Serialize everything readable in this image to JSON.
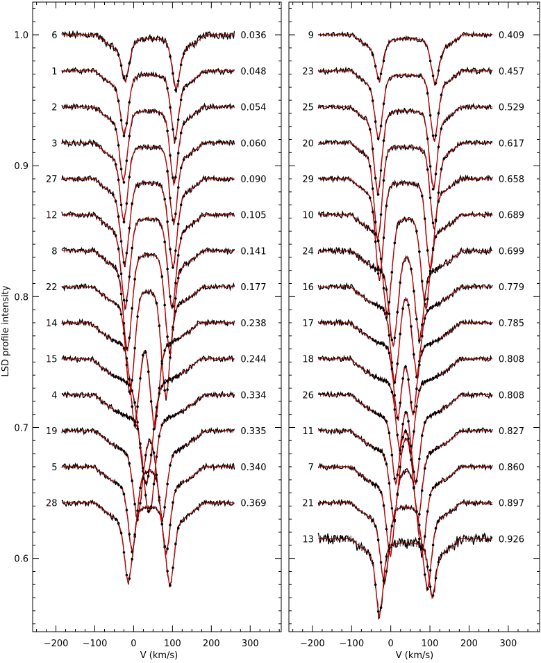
{
  "chart_data": {
    "type": "line",
    "ylabel": "LSD profile intensity",
    "xlabel": "V (km/s)",
    "ylim": [
      0.544,
      1.025
    ],
    "xlim": [
      -260,
      380
    ],
    "x_ticks": [
      -200,
      -100,
      0,
      100,
      200,
      300
    ],
    "x_tick_labels": [
      "−200",
      "−100",
      "0",
      "100",
      "200",
      "300"
    ],
    "y_ticks": [
      0.6,
      0.7,
      0.8,
      0.9,
      1.0
    ],
    "y_tick_labels": [
      "0.6",
      "0.7",
      "0.8",
      "0.9",
      "1.0"
    ],
    "velocity_range": [
      -185,
      260
    ],
    "offset_step": 0.0275,
    "grid": false,
    "colors": {
      "observed": "#000000",
      "model": "#d40000",
      "axis": "#000000"
    },
    "panels": [
      {
        "spectra": [
          {
            "id": "6",
            "phase": "0.036",
            "continuum": 1.0,
            "dips": [
              {
                "v": -20,
                "d": 0.022,
                "w": 10
              },
              {
                "v": 108,
                "d": 0.028,
                "w": 10
              }
            ],
            "wing": 0.02,
            "wing_half": 140,
            "core_lift": 0.0,
            "noise": 0.0025
          },
          {
            "id": "1",
            "phase": "0.048",
            "continuum": 0.9725,
            "dips": [
              {
                "v": -23,
                "d": 0.035,
                "w": 10
              },
              {
                "v": 105,
                "d": 0.038,
                "w": 10
              }
            ],
            "wing": 0.022,
            "wing_half": 140,
            "core_lift": 0.0,
            "noise": 0.0018
          },
          {
            "id": "2",
            "phase": "0.054",
            "continuum": 0.945,
            "dips": [
              {
                "v": -25,
                "d": 0.042,
                "w": 10
              },
              {
                "v": 103,
                "d": 0.044,
                "w": 10
              }
            ],
            "wing": 0.022,
            "wing_half": 140,
            "core_lift": 0.0,
            "noise": 0.0018
          },
          {
            "id": "3",
            "phase": "0.060",
            "continuum": 0.9175,
            "dips": [
              {
                "v": -24,
                "d": 0.045,
                "w": 10
              },
              {
                "v": 102,
                "d": 0.047,
                "w": 10
              }
            ],
            "wing": 0.022,
            "wing_half": 140,
            "core_lift": 0.0,
            "noise": 0.0018
          },
          {
            "id": "27",
            "phase": "0.090",
            "continuum": 0.89,
            "dips": [
              {
                "v": -22,
                "d": 0.05,
                "w": 11
              },
              {
                "v": 100,
                "d": 0.052,
                "w": 11
              }
            ],
            "wing": 0.022,
            "wing_half": 140,
            "core_lift": 0.0,
            "noise": 0.0018
          },
          {
            "id": "12",
            "phase": "0.105",
            "continuum": 0.8625,
            "dips": [
              {
                "v": -20,
                "d": 0.055,
                "w": 11
              },
              {
                "v": 98,
                "d": 0.056,
                "w": 11
              }
            ],
            "wing": 0.022,
            "wing_half": 140,
            "core_lift": 0.0,
            "noise": 0.0018
          },
          {
            "id": "8",
            "phase": "0.141",
            "continuum": 0.835,
            "dips": [
              {
                "v": -15,
                "d": 0.06,
                "w": 11
              },
              {
                "v": 92,
                "d": 0.062,
                "w": 11
              }
            ],
            "wing": 0.022,
            "wing_half": 140,
            "core_lift": 0.0,
            "noise": 0.002
          },
          {
            "id": "22",
            "phase": "0.177",
            "continuum": 0.8075,
            "dips": [
              {
                "v": -8,
                "d": 0.065,
                "w": 11
              },
              {
                "v": 82,
                "d": 0.068,
                "w": 11
              }
            ],
            "wing": 0.022,
            "wing_half": 140,
            "core_lift": 0.0,
            "noise": 0.0018
          },
          {
            "id": "14",
            "phase": "0.238",
            "continuum": 0.78,
            "dips": [
              {
                "v": 5,
                "d": 0.06,
                "w": 12
              },
              {
                "v": 52,
                "d": 0.062,
                "w": 12
              }
            ],
            "wing": 0.022,
            "wing_half": 140,
            "core_lift": 0.0,
            "noise": 0.0018
          },
          {
            "id": "15",
            "phase": "0.244",
            "continuum": 0.7525,
            "dips": [
              {
                "v": 32,
                "d": 0.075,
                "w": 16
              }
            ],
            "wing": 0.022,
            "wing_half": 140,
            "core_lift": 0.0,
            "noise": 0.0018
          },
          {
            "id": "4",
            "phase": "0.334",
            "continuum": 0.725,
            "dips": [
              {
                "v": 40,
                "d": 0.07,
                "w": 14
              }
            ],
            "wing": 0.022,
            "wing_half": 140,
            "core_lift": 0.0,
            "noise": 0.0018
          },
          {
            "id": "19",
            "phase": "0.335",
            "continuum": 0.6975,
            "dips": [
              {
                "v": 12,
                "d": 0.05,
                "w": 12
              },
              {
                "v": 72,
                "d": 0.05,
                "w": 12
              }
            ],
            "wing": 0.022,
            "wing_half": 140,
            "core_lift": 0.0,
            "noise": 0.0018
          },
          {
            "id": "5",
            "phase": "0.340",
            "continuum": 0.67,
            "dips": [
              {
                "v": -2,
                "d": 0.048,
                "w": 11
              },
              {
                "v": 82,
                "d": 0.05,
                "w": 11
              }
            ],
            "wing": 0.022,
            "wing_half": 140,
            "core_lift": 0.0,
            "noise": 0.0018
          },
          {
            "id": "28",
            "phase": "0.369",
            "continuum": 0.6425,
            "dips": [
              {
                "v": -12,
                "d": 0.045,
                "w": 11
              },
              {
                "v": 92,
                "d": 0.047,
                "w": 11
              }
            ],
            "wing": 0.022,
            "wing_half": 140,
            "core_lift": 0.0,
            "noise": 0.0018
          }
        ]
      },
      {
        "spectra": [
          {
            "id": "9",
            "phase": "0.409",
            "continuum": 1.0,
            "dips": [
              {
                "v": -28,
                "d": 0.022,
                "w": 10
              },
              {
                "v": 112,
                "d": 0.025,
                "w": 10
              }
            ],
            "wing": 0.02,
            "wing_half": 140,
            "core_lift": 0.0,
            "noise": 0.0015
          },
          {
            "id": "23",
            "phase": "0.457",
            "continuum": 0.9725,
            "dips": [
              {
                "v": -30,
                "d": 0.038,
                "w": 10
              },
              {
                "v": 110,
                "d": 0.04,
                "w": 10
              }
            ],
            "wing": 0.022,
            "wing_half": 140,
            "core_lift": 0.0,
            "noise": 0.0018
          },
          {
            "id": "25",
            "phase": "0.529",
            "continuum": 0.945,
            "dips": [
              {
                "v": -32,
                "d": 0.052,
                "w": 10
              },
              {
                "v": 108,
                "d": 0.048,
                "w": 10
              }
            ],
            "wing": 0.022,
            "wing_half": 140,
            "core_lift": 0.0,
            "noise": 0.0018
          },
          {
            "id": "20",
            "phase": "0.617",
            "continuum": 0.9175,
            "dips": [
              {
                "v": -32,
                "d": 0.06,
                "w": 10
              },
              {
                "v": 110,
                "d": 0.052,
                "w": 10
              }
            ],
            "wing": 0.022,
            "wing_half": 140,
            "core_lift": 0.0,
            "noise": 0.0018
          },
          {
            "id": "29",
            "phase": "0.658",
            "continuum": 0.89,
            "dips": [
              {
                "v": -28,
                "d": 0.062,
                "w": 10
              },
              {
                "v": 100,
                "d": 0.055,
                "w": 10
              }
            ],
            "wing": 0.022,
            "wing_half": 140,
            "core_lift": 0.0,
            "noise": 0.0018
          },
          {
            "id": "10",
            "phase": "0.689",
            "continuum": 0.8625,
            "dips": [
              {
                "v": -8,
                "d": 0.06,
                "w": 11
              },
              {
                "v": 88,
                "d": 0.055,
                "w": 11
              }
            ],
            "wing": 0.022,
            "wing_half": 140,
            "core_lift": 0.0,
            "noise": 0.0018
          },
          {
            "id": "24",
            "phase": "0.699",
            "continuum": 0.835,
            "dips": [
              {
                "v": 8,
                "d": 0.055,
                "w": 11
              },
              {
                "v": 72,
                "d": 0.05,
                "w": 11
              }
            ],
            "wing": 0.022,
            "wing_half": 140,
            "core_lift": 0.0,
            "noise": 0.0022
          },
          {
            "id": "16",
            "phase": "0.779",
            "continuum": 0.8075,
            "dips": [
              {
                "v": 12,
                "d": 0.055,
                "w": 11
              },
              {
                "v": 65,
                "d": 0.05,
                "w": 11
              }
            ],
            "wing": 0.022,
            "wing_half": 140,
            "core_lift": 0.0,
            "noise": 0.0018
          },
          {
            "id": "17",
            "phase": "0.785",
            "continuum": 0.78,
            "dips": [
              {
                "v": 20,
                "d": 0.055,
                "w": 11
              },
              {
                "v": 55,
                "d": 0.052,
                "w": 11
              }
            ],
            "wing": 0.022,
            "wing_half": 140,
            "core_lift": 0.0,
            "noise": 0.0018
          },
          {
            "id": "18",
            "phase": "0.808",
            "continuum": 0.7525,
            "dips": [
              {
                "v": 25,
                "d": 0.05,
                "w": 11
              },
              {
                "v": 50,
                "d": 0.05,
                "w": 11
              }
            ],
            "wing": 0.022,
            "wing_half": 140,
            "core_lift": 0.0,
            "noise": 0.0018
          },
          {
            "id": "26",
            "phase": "0.808",
            "continuum": 0.725,
            "dips": [
              {
                "v": 15,
                "d": 0.05,
                "w": 11
              },
              {
                "v": 62,
                "d": 0.05,
                "w": 11
              }
            ],
            "wing": 0.022,
            "wing_half": 140,
            "core_lift": 0.0,
            "noise": 0.0018
          },
          {
            "id": "11",
            "phase": "0.827",
            "continuum": 0.6975,
            "dips": [
              {
                "v": 10,
                "d": 0.05,
                "w": 11
              },
              {
                "v": 68,
                "d": 0.05,
                "w": 11
              }
            ],
            "wing": 0.022,
            "wing_half": 140,
            "core_lift": 0.0,
            "noise": 0.0018
          },
          {
            "id": "7",
            "phase": "0.860",
            "continuum": 0.67,
            "dips": [
              {
                "v": 0,
                "d": 0.05,
                "w": 11
              },
              {
                "v": 78,
                "d": 0.05,
                "w": 11
              }
            ],
            "wing": 0.022,
            "wing_half": 140,
            "core_lift": 0.0,
            "noise": 0.0018
          },
          {
            "id": "21",
            "phase": "0.897",
            "continuum": 0.6425,
            "dips": [
              {
                "v": -15,
                "d": 0.045,
                "w": 11
              },
              {
                "v": 92,
                "d": 0.05,
                "w": 11
              }
            ],
            "wing": 0.022,
            "wing_half": 140,
            "core_lift": 0.0,
            "noise": 0.0018
          },
          {
            "id": "13",
            "phase": "0.926",
            "continuum": 0.615,
            "dips": [
              {
                "v": -28,
                "d": 0.045,
                "w": 9
              },
              {
                "v": 105,
                "d": 0.03,
                "w": 9
              }
            ],
            "wing": 0.022,
            "wing_half": 140,
            "core_lift": 0.0,
            "noise": 0.0035
          }
        ]
      }
    ]
  }
}
